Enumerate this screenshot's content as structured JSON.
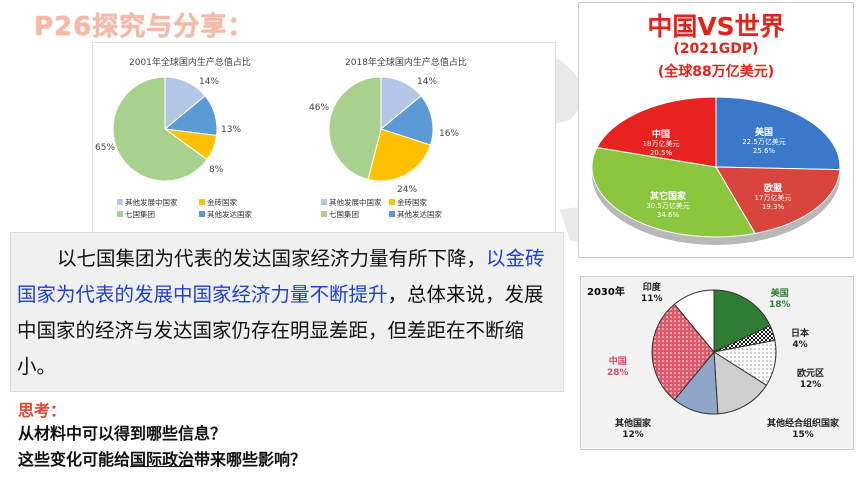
{
  "page": {
    "title": "P26探究与分享：",
    "paragraph_part1": "以七国集团为代表的发达国家经济力量有所下降，",
    "paragraph_part2": "以金砖国家为代表的发展中国家经济力量不断提升",
    "paragraph_part3": "，总体来说，发展中国家的经济与发达国家仍存在明显差距，但差距在不断缩小。",
    "think_label": "思考：",
    "question1": "从材料中可以得到哪些信息？",
    "question2_prefix": "这些变化可能给",
    "question2_underlined": "国际政治",
    "question2_suffix": "带来哪些影响？"
  },
  "colors": {
    "title": "#f7b8a6",
    "highlight_blue": "#1c3fd8",
    "think_red": "#e0482a",
    "g7": "#a9d18e",
    "other_developing": "#b4c7e7",
    "brics": "#ffc000",
    "other_developed": "#5b9bd5"
  },
  "chart_data": [
    {
      "type": "pie",
      "title": "2001年全球国内生产总值占比",
      "slices": [
        {
          "name": "七国集团",
          "value": 65,
          "label": "65%"
        },
        {
          "name": "其他发展中国家",
          "value": 14,
          "label": "14%"
        },
        {
          "name": "其他发达国家",
          "value": 13,
          "label": "13%"
        },
        {
          "name": "金砖国家",
          "value": 8,
          "label": "8%"
        }
      ],
      "legend": [
        "其他发展中国家",
        "金砖国家",
        "七国集团",
        "其他发达国家"
      ]
    },
    {
      "type": "pie",
      "title": "2018年全球国内生产总值占比",
      "slices": [
        {
          "name": "七国集团",
          "value": 46,
          "label": "46%"
        },
        {
          "name": "其他发展中国家",
          "value": 14,
          "label": "14%"
        },
        {
          "name": "其他发达国家",
          "value": 16,
          "label": "16%"
        },
        {
          "name": "金砖国家",
          "value": 24,
          "label": "24%"
        }
      ],
      "legend": [
        "其他发展中国家",
        "金砖国家",
        "七国集团",
        "其他发达国家"
      ]
    },
    {
      "type": "pie",
      "title": "中国VS世界",
      "subtitle": "(2021GDP)",
      "subtitle2": "(全球88万亿美元)",
      "slices": [
        {
          "name": "中国",
          "value": 20.5,
          "amount": "18万亿美元",
          "label": "20.5%",
          "color": "#e8231f"
        },
        {
          "name": "美国",
          "value": 25.6,
          "amount": "22.5万亿美元",
          "label": "25.6%",
          "color": "#3a78c9"
        },
        {
          "name": "欧盟",
          "value": 19.3,
          "amount": "17万亿美元",
          "label": "19.3%",
          "color": "#d9443c"
        },
        {
          "name": "其它国家",
          "value": 34.6,
          "amount": "30.5万亿美元",
          "label": "34.6%",
          "color": "#8cc63f"
        }
      ]
    },
    {
      "type": "pie",
      "title": "2030年",
      "slices": [
        {
          "name": "美国",
          "value": 18,
          "label": "18%",
          "color": "#2e7d32"
        },
        {
          "name": "日本",
          "value": 4,
          "label": "4%",
          "color": "#111111"
        },
        {
          "name": "欧元区",
          "value": 12,
          "label": "12%",
          "color": "#f2f2f2"
        },
        {
          "name": "其他经合组织国家",
          "value": 15,
          "label": "15%",
          "color": "#cfcfcf"
        },
        {
          "name": "其他国家",
          "value": 12,
          "label": "12%",
          "color": "#8fa6c9"
        },
        {
          "name": "中国",
          "value": 28,
          "label": "28%",
          "color": "#e0586a"
        },
        {
          "name": "印度",
          "value": 11,
          "label": "11%",
          "color": "#ffffff"
        }
      ]
    }
  ]
}
